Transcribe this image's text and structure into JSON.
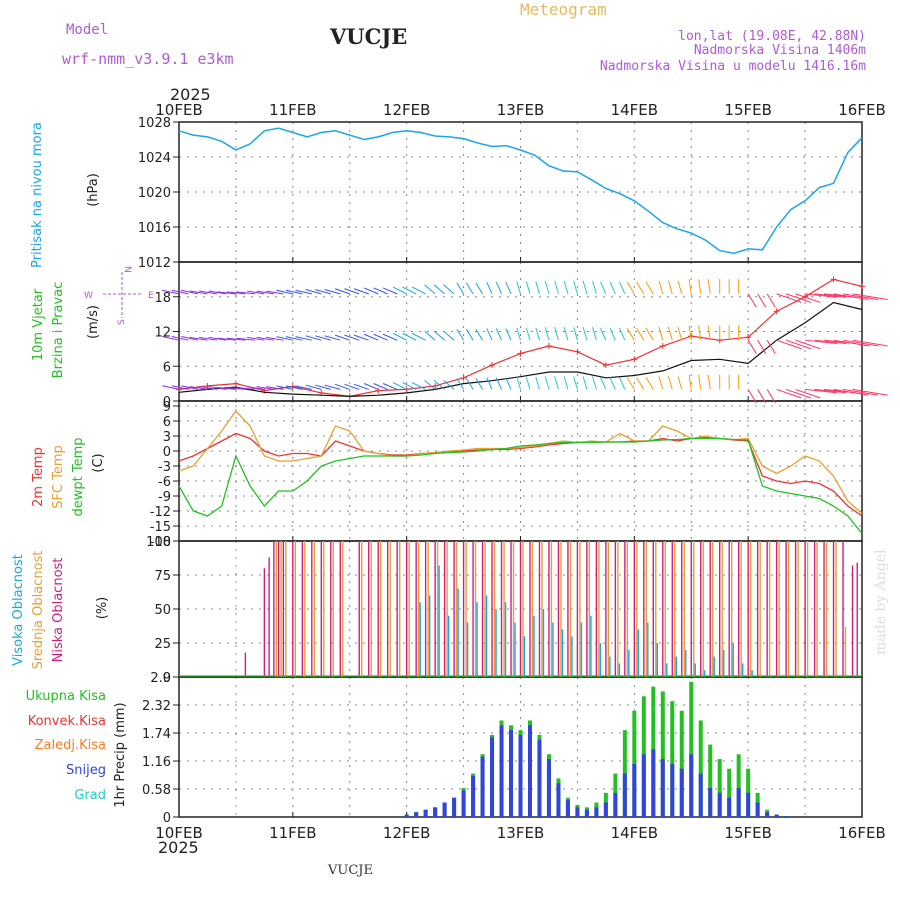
{
  "header": {
    "model_label": "Model",
    "model_name": "wrf-nmm_v3.9.1 e3km",
    "station": "VUCJE",
    "title": "Meteogram",
    "lonlat": "lon,lat (19.08E, 42.88N)",
    "elevation": "Nadmorska Visina 1406m",
    "model_elevation": "Nadmorska Visina u modelu 1416.16m"
  },
  "footer": {
    "station": "VUCJE",
    "watermark": "made by Angel"
  },
  "time_axis": {
    "year": "2025",
    "labels": [
      "10FEB",
      "11FEB",
      "12FEB",
      "13FEB",
      "14FEB",
      "15FEB",
      "16FEB"
    ]
  },
  "panels": {
    "pressure": {
      "label": "Pritisak na nivou mora",
      "unit": "(hPa)"
    },
    "wind": {
      "label1": "10m Vjetar",
      "label2": "Brzina i Pravac",
      "unit": "(m/s)",
      "compass": {
        "west": "W",
        "east": "E",
        "north": "N",
        "south": "S"
      }
    },
    "temp": {
      "label1": "2m Temp",
      "label2": "SFC Temp",
      "label3": "dewpt Temp",
      "unit": "(C)"
    },
    "cloud": {
      "label1": "Visoka Oblacnost",
      "label2": "Srednja Oblacnost",
      "label3": "Niska Oblacnost",
      "unit": "(%)"
    },
    "precip": {
      "unit": "1hr Precip (mm)",
      "legend": [
        "Ukupna Kisa",
        "Konvek.Kisa",
        "Zaledj.Kisa",
        "Snijeg",
        "Grad"
      ]
    }
  },
  "colors": {
    "pressure": "#1aa6e8",
    "temp2m": "#ee3333",
    "sfc": "#e8a030",
    "dew": "#22c022",
    "cloud_high": "#1aa6e8",
    "cloud_mid": "#e8a030",
    "cloud_low": "#cc2080",
    "rain": "#22c022",
    "conv": "#ee3333",
    "frz": "#ff7a20",
    "snow": "#3344dd",
    "hail": "#22cccc",
    "header_purple": "#b05ad6",
    "title_gold": "#e8b860"
  },
  "chart_data": [
    {
      "type": "line",
      "title": "Pritisak na nivou mora",
      "ylabel": "(hPa)",
      "ylim": [
        1012,
        1028
      ],
      "yticks": [
        1012,
        1016,
        1020,
        1024,
        1028
      ],
      "x": [
        0,
        3,
        6,
        9,
        12,
        15,
        18,
        21,
        24,
        27,
        30,
        33,
        36,
        39,
        42,
        45,
        48,
        51,
        54,
        57,
        60,
        63,
        66,
        69,
        72,
        75,
        78,
        81,
        84,
        87,
        90,
        93,
        96,
        99,
        102,
        105,
        108,
        111,
        114,
        117,
        120,
        123,
        126,
        129,
        132,
        135,
        138,
        141,
        144
      ],
      "series": [
        {
          "name": "SLP",
          "values": [
            1027,
            1026.5,
            1026.3,
            1025.8,
            1024.8,
            1025.5,
            1027,
            1027.3,
            1026.8,
            1026.3,
            1026.8,
            1027,
            1026.5,
            1026,
            1026.3,
            1026.8,
            1027,
            1026.8,
            1026.4,
            1026.3,
            1026.1,
            1025.6,
            1025.2,
            1025.3,
            1024.8,
            1024.2,
            1023,
            1022.4,
            1022.3,
            1021.4,
            1020.4,
            1019.8,
            1019,
            1017.8,
            1016.5,
            1015.8,
            1015.3,
            1014.5,
            1013.3,
            1013,
            1013.5,
            1013.4,
            1016,
            1018,
            1019,
            1020.5,
            1021,
            1024.5,
            1026.2
          ]
        }
      ]
    },
    {
      "type": "line",
      "title": "10m Vjetar - Brzina i Pravac",
      "ylabel": "(m/s)",
      "ylim": [
        0,
        24
      ],
      "yticks": [
        0,
        6,
        12,
        18
      ],
      "x": [
        0,
        6,
        12,
        18,
        24,
        30,
        36,
        42,
        48,
        54,
        60,
        66,
        72,
        78,
        84,
        90,
        96,
        102,
        108,
        114,
        120,
        126,
        132,
        138,
        144
      ],
      "series": [
        {
          "name": "gust",
          "values": [
            2.0,
            2.6,
            3.0,
            1.8,
            2.5,
            1.4,
            0.8,
            1.8,
            2.0,
            2.6,
            4.0,
            6.2,
            8.2,
            9.5,
            8.5,
            6.2,
            7.2,
            9.5,
            11.2,
            10.5,
            11.0,
            15.5,
            18.0,
            21.0,
            19.8
          ]
        },
        {
          "name": "wind speed",
          "values": [
            1.5,
            2.0,
            2.4,
            1.5,
            1.2,
            1.0,
            0.8,
            1.0,
            1.4,
            2.0,
            3.0,
            3.5,
            4.2,
            5.0,
            5.0,
            4.0,
            4.4,
            5.2,
            7.0,
            7.2,
            6.5,
            10.5,
            13.5,
            17.0,
            15.8
          ]
        },
        {
          "name": "wind direction",
          "values": [
            250,
            255,
            260,
            255,
            250,
            245,
            240,
            235,
            230,
            215,
            200,
            195,
            190,
            190,
            190,
            195,
            200,
            190,
            185,
            180,
            20,
            60,
            80,
            75,
            70
          ]
        }
      ]
    },
    {
      "type": "line",
      "title": "2m Temp / SFC Temp / dewpt Temp",
      "ylabel": "(C)",
      "ylim": [
        -18,
        10
      ],
      "yticks": [
        -18,
        -15,
        -12,
        -9,
        -6,
        -3,
        0,
        3,
        6,
        9
      ],
      "x": [
        0,
        3,
        6,
        9,
        12,
        15,
        18,
        21,
        24,
        27,
        30,
        33,
        36,
        39,
        42,
        45,
        48,
        51,
        54,
        57,
        60,
        63,
        66,
        69,
        72,
        75,
        78,
        81,
        84,
        87,
        90,
        93,
        96,
        99,
        102,
        105,
        108,
        111,
        114,
        117,
        120,
        123,
        126,
        129,
        132,
        135,
        138,
        141,
        144
      ],
      "series": [
        {
          "name": "2m Temp",
          "values": [
            -2,
            -1,
            0.5,
            2,
            3.5,
            2.5,
            0,
            -1,
            -0.5,
            -0.5,
            -1,
            2,
            1,
            0,
            -0.5,
            -0.8,
            -0.8,
            -0.5,
            -0.3,
            -0.1,
            0,
            0.2,
            0.3,
            0.3,
            0.5,
            0.8,
            1.2,
            1.5,
            1.7,
            1.8,
            1.8,
            1.8,
            2,
            2,
            2.5,
            2,
            2.5,
            2.7,
            2.5,
            2.2,
            2,
            -5,
            -6,
            -6.5,
            -6,
            -6.5,
            -8,
            -11,
            -13
          ]
        },
        {
          "name": "SFC Temp",
          "values": [
            -4,
            -3,
            0.5,
            4,
            8,
            5,
            -1,
            -2,
            -2,
            -1.5,
            -1,
            5,
            4,
            0,
            -0.5,
            -1,
            -1,
            -0.5,
            -0.3,
            0,
            0.2,
            0.5,
            0.5,
            0.5,
            0.7,
            1,
            1.5,
            2,
            1.7,
            2,
            1.8,
            3.5,
            2,
            2,
            5,
            4,
            2.5,
            3,
            2.5,
            2.3,
            2.5,
            -3,
            -4.5,
            -3,
            -1,
            -2,
            -5,
            -10,
            -12.5
          ]
        },
        {
          "name": "dewpt Temp",
          "values": [
            -7,
            -12,
            -13,
            -11,
            -1,
            -7,
            -11,
            -8,
            -8,
            -6,
            -3,
            -2,
            -1.5,
            -1,
            -1,
            -1,
            -1,
            -0.8,
            -0.5,
            -0.3,
            -0.2,
            0,
            0.3,
            0.5,
            1,
            1.2,
            1.5,
            1.7,
            1.7,
            1.7,
            1.8,
            1.8,
            1.8,
            2,
            2.2,
            2.3,
            2.5,
            2.5,
            2.5,
            2.3,
            2.2,
            -7,
            -8,
            -8.5,
            -9,
            -9.5,
            -11,
            -13,
            -16.5
          ]
        }
      ]
    },
    {
      "type": "bar",
      "title": "Oblacnost",
      "ylabel": "(%)",
      "ylim": [
        0,
        100
      ],
      "yticks": [
        0,
        25,
        50,
        75,
        100
      ],
      "x": [
        14,
        18,
        19,
        20,
        21,
        22,
        24,
        26,
        28,
        30,
        32,
        34,
        38,
        40,
        42,
        44,
        46,
        48,
        50,
        52,
        54,
        56,
        58,
        60,
        62,
        64,
        66,
        68,
        70,
        72,
        74,
        76,
        78,
        80,
        82,
        84,
        86,
        88,
        90,
        92,
        94,
        96,
        98,
        100,
        102,
        104,
        106,
        108,
        110,
        112,
        114,
        116,
        118,
        120,
        122,
        124,
        126,
        128,
        130,
        132,
        134,
        136,
        138,
        140,
        142,
        143
      ],
      "series": [
        {
          "name": "Niska Oblacnost",
          "values": [
            18,
            80,
            88,
            100,
            100,
            100,
            100,
            100,
            100,
            100,
            100,
            100,
            100,
            100,
            100,
            100,
            100,
            100,
            100,
            100,
            100,
            100,
            100,
            100,
            100,
            100,
            100,
            100,
            100,
            100,
            100,
            100,
            100,
            100,
            100,
            100,
            100,
            100,
            100,
            100,
            100,
            100,
            100,
            100,
            100,
            100,
            100,
            100,
            100,
            100,
            100,
            100,
            100,
            100,
            100,
            100,
            100,
            100,
            100,
            100,
            100,
            100,
            100,
            100,
            82,
            84
          ]
        },
        {
          "name": "Srednja Oblacnost",
          "values": [
            0,
            0,
            0,
            100,
            100,
            100,
            100,
            100,
            100,
            100,
            100,
            100,
            100,
            100,
            100,
            100,
            100,
            100,
            100,
            100,
            100,
            100,
            100,
            100,
            100,
            100,
            100,
            100,
            100,
            100,
            100,
            100,
            100,
            100,
            100,
            100,
            100,
            100,
            100,
            100,
            100,
            100,
            100,
            100,
            100,
            100,
            100,
            100,
            100,
            100,
            100,
            100,
            100,
            100,
            100,
            100,
            100,
            100,
            100,
            100,
            100,
            100,
            100,
            37,
            0,
            0
          ]
        },
        {
          "name": "Visoka Oblacnost",
          "values": [
            0,
            0,
            0,
            0,
            0,
            0,
            0,
            0,
            0,
            0,
            0,
            0,
            0,
            0,
            0,
            0,
            0,
            0,
            55,
            60,
            82,
            45,
            65,
            40,
            55,
            60,
            50,
            55,
            40,
            30,
            45,
            50,
            40,
            35,
            30,
            40,
            45,
            25,
            15,
            10,
            20,
            35,
            40,
            25,
            10,
            15,
            20,
            10,
            5,
            15,
            20,
            25,
            10,
            5,
            0,
            0,
            0,
            0,
            0,
            0,
            0,
            0,
            0,
            0,
            0,
            0
          ]
        }
      ]
    },
    {
      "type": "bar",
      "title": "1hr Precip",
      "ylabel": "1hr Precip (mm)",
      "ylim": [
        0,
        2.9
      ],
      "yticks": [
        0,
        0.58,
        1.16,
        1.74,
        2.32,
        2.9
      ],
      "x": [
        48,
        50,
        52,
        54,
        56,
        58,
        60,
        62,
        64,
        66,
        68,
        70,
        72,
        74,
        76,
        78,
        80,
        82,
        84,
        86,
        88,
        90,
        92,
        94,
        96,
        98,
        100,
        102,
        104,
        106,
        108,
        110,
        112,
        114,
        116,
        118,
        120,
        122,
        124,
        126,
        128
      ],
      "series": [
        {
          "name": "Ukupna Kisa",
          "values": [
            0.05,
            0.1,
            0.15,
            0.2,
            0.3,
            0.4,
            0.6,
            0.9,
            1.3,
            1.7,
            2.0,
            1.9,
            1.8,
            2.0,
            1.7,
            1.3,
            0.8,
            0.4,
            0.25,
            0.2,
            0.3,
            0.5,
            0.9,
            1.8,
            2.2,
            2.5,
            2.7,
            2.6,
            2.4,
            2.2,
            2.8,
            2.0,
            1.5,
            1.2,
            1.0,
            1.3,
            1.0,
            0.5,
            0.15,
            0.05,
            0.02
          ]
        },
        {
          "name": "Snijeg",
          "values": [
            0.05,
            0.1,
            0.15,
            0.2,
            0.3,
            0.4,
            0.55,
            0.85,
            1.25,
            1.65,
            1.9,
            1.8,
            1.7,
            1.9,
            1.6,
            1.2,
            0.7,
            0.35,
            0.2,
            0.15,
            0.2,
            0.3,
            0.5,
            0.9,
            1.1,
            1.3,
            1.4,
            1.2,
            1.1,
            1.0,
            1.3,
            0.9,
            0.6,
            0.5,
            0.4,
            0.6,
            0.5,
            0.3,
            0.1,
            0.05,
            0.02
          ]
        }
      ]
    }
  ]
}
